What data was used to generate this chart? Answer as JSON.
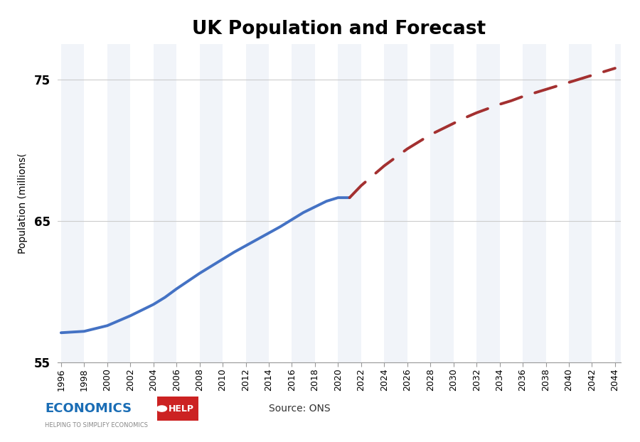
{
  "title": "UK Population and Forecast",
  "ylabel": "Population (millions(",
  "background_color": "#ffffff",
  "title_fontsize": 19,
  "ylabel_fontsize": 10,
  "historical_years": [
    1996,
    1997,
    1998,
    1999,
    2000,
    2001,
    2002,
    2003,
    2004,
    2005,
    2006,
    2007,
    2008,
    2009,
    2010,
    2011,
    2012,
    2013,
    2014,
    2015,
    2016,
    2017,
    2018,
    2019,
    2020,
    2021
  ],
  "historical_values": [
    57.1,
    57.15,
    57.2,
    57.4,
    57.6,
    57.95,
    58.3,
    58.7,
    59.1,
    59.6,
    60.2,
    60.75,
    61.3,
    61.8,
    62.3,
    62.8,
    63.25,
    63.7,
    64.15,
    64.6,
    65.1,
    65.6,
    66.0,
    66.4,
    66.65,
    66.65
  ],
  "forecast_years": [
    2021,
    2022,
    2023,
    2024,
    2025,
    2026,
    2027,
    2028,
    2029,
    2030,
    2031,
    2032,
    2033,
    2034,
    2035,
    2036,
    2037,
    2038,
    2039,
    2040,
    2041,
    2042,
    2043,
    2044
  ],
  "forecast_values": [
    66.65,
    67.5,
    68.2,
    68.9,
    69.5,
    70.1,
    70.6,
    71.1,
    71.5,
    71.9,
    72.3,
    72.65,
    72.95,
    73.25,
    73.5,
    73.8,
    74.05,
    74.3,
    74.55,
    74.8,
    75.05,
    75.3,
    75.55,
    75.8
  ],
  "historical_color": "#4472c4",
  "forecast_color": "#a33030",
  "ylim": [
    55,
    77.5
  ],
  "yticks": [
    55,
    65,
    75
  ],
  "xtick_start": 1996,
  "xtick_end": 2044,
  "xtick_step": 2,
  "grid_color": "#cccccc",
  "stripe_color": "#e8eef6",
  "source_text": "Source: ONS",
  "line_width": 2.8,
  "forecast_linewidth": 2.8,
  "logo_text_economics": "ECONOMICS",
  "logo_text_help": "HELP",
  "logo_subtext": "HELPING TO SIMPLIFY ECONOMICS"
}
